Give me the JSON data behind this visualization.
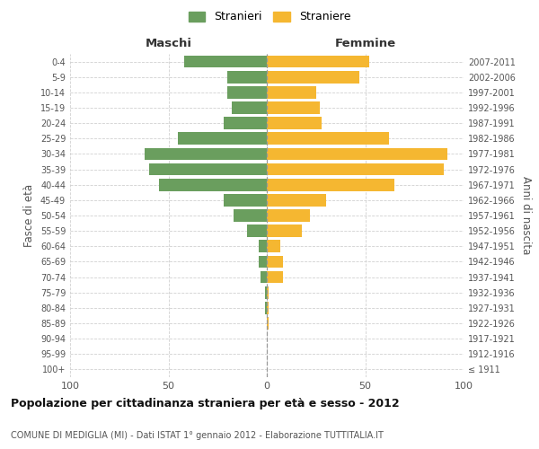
{
  "age_groups": [
    "100+",
    "95-99",
    "90-94",
    "85-89",
    "80-84",
    "75-79",
    "70-74",
    "65-69",
    "60-64",
    "55-59",
    "50-54",
    "45-49",
    "40-44",
    "35-39",
    "30-34",
    "25-29",
    "20-24",
    "15-19",
    "10-14",
    "5-9",
    "0-4"
  ],
  "birth_years": [
    "≤ 1911",
    "1912-1916",
    "1917-1921",
    "1922-1926",
    "1927-1931",
    "1932-1936",
    "1937-1941",
    "1942-1946",
    "1947-1951",
    "1952-1956",
    "1957-1961",
    "1962-1966",
    "1967-1971",
    "1972-1976",
    "1977-1981",
    "1982-1986",
    "1987-1991",
    "1992-1996",
    "1997-2001",
    "2002-2006",
    "2007-2011"
  ],
  "maschi": [
    0,
    0,
    0,
    0,
    1,
    1,
    3,
    4,
    4,
    10,
    17,
    22,
    55,
    60,
    62,
    45,
    22,
    18,
    20,
    20,
    42
  ],
  "femmine": [
    0,
    0,
    0,
    1,
    1,
    1,
    8,
    8,
    7,
    18,
    22,
    30,
    65,
    90,
    92,
    62,
    28,
    27,
    25,
    47,
    52
  ],
  "male_color": "#6a9e5e",
  "female_color": "#f5b731",
  "background_color": "#ffffff",
  "grid_color": "#cccccc",
  "title": "Popolazione per cittadinanza straniera per età e sesso - 2012",
  "subtitle": "COMUNE DI MEDIGLIA (MI) - Dati ISTAT 1° gennaio 2012 - Elaborazione TUTTITALIA.IT",
  "xlabel_left": "Maschi",
  "xlabel_right": "Femmine",
  "ylabel_left": "Fasce di età",
  "ylabel_right": "Anni di nascita",
  "legend_male": "Stranieri",
  "legend_female": "Straniere",
  "xlim": 100,
  "bar_height": 0.8
}
